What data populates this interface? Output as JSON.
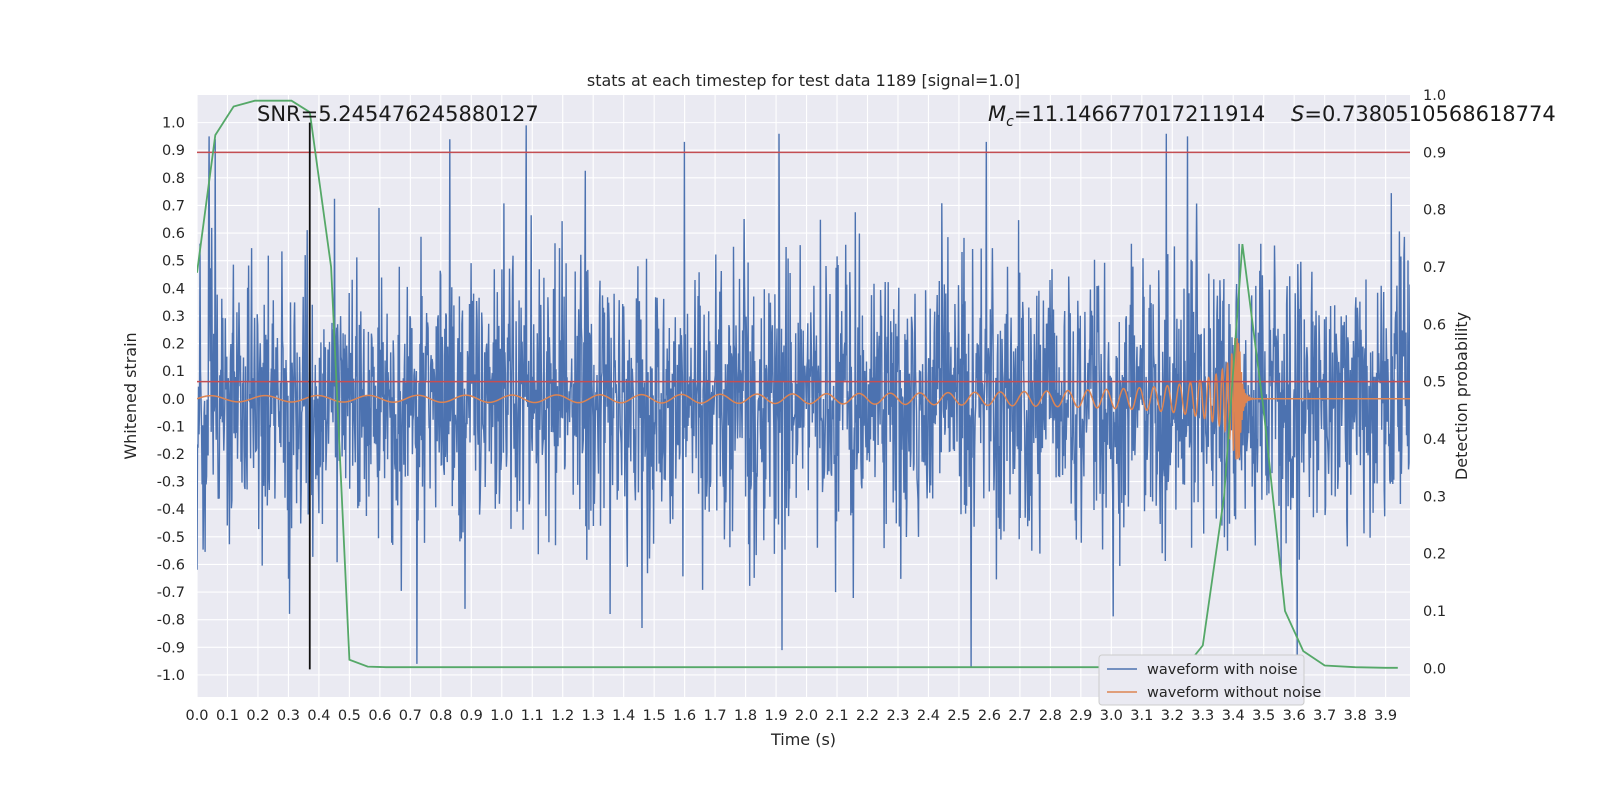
{
  "chart_data": {
    "type": "line",
    "title": "stats at each timestep for test data 1189 [signal=1.0]",
    "xlabel": "Time (s)",
    "ylabel": "Whitened strain",
    "y2label": "Detection probability",
    "xlim": [
      0.0,
      3.98
    ],
    "ylim": [
      -1.08,
      1.1
    ],
    "y2lim": [
      -0.05,
      1.0
    ],
    "x_ticks": [
      0.0,
      0.1,
      0.2,
      0.3,
      0.4,
      0.5,
      0.6,
      0.7,
      0.8,
      0.9,
      1.0,
      1.1,
      1.2,
      1.3,
      1.4,
      1.5,
      1.6,
      1.7,
      1.8,
      1.9,
      2.0,
      2.1,
      2.2,
      2.3,
      2.4,
      2.5,
      2.6,
      2.7,
      2.8,
      2.9,
      3.0,
      3.1,
      3.2,
      3.3,
      3.4,
      3.5,
      3.6,
      3.7,
      3.8,
      3.9
    ],
    "y_ticks": [
      -1.0,
      -0.9,
      -0.8,
      -0.7,
      -0.6,
      -0.5,
      -0.4,
      -0.3,
      -0.2,
      -0.1,
      0.0,
      0.1,
      0.2,
      0.3,
      0.4,
      0.5,
      0.6,
      0.7,
      0.8,
      0.9,
      1.0
    ],
    "y2_ticks": [
      0.0,
      0.1,
      0.2,
      0.3,
      0.4,
      0.5,
      0.6,
      0.7,
      0.8,
      0.9,
      1.0
    ],
    "grid": true,
    "legend_position": "lower-right",
    "series": [
      {
        "name": "waveform with noise",
        "color": "#4c72b0",
        "axis": "left",
        "description_values": "dense noise between about -0.9 and 1.0",
        "noise_amplitude": 0.35,
        "peaks": [
          {
            "x": 0.04,
            "y": 0.95
          },
          {
            "x": 0.06,
            "y": 0.94
          },
          {
            "x": 0.83,
            "y": 0.94
          },
          {
            "x": 1.08,
            "y": 0.99
          },
          {
            "x": 1.6,
            "y": 0.93
          },
          {
            "x": 1.91,
            "y": 0.96
          },
          {
            "x": 2.59,
            "y": 0.93
          },
          {
            "x": 3.25,
            "y": 0.95
          },
          {
            "x": 1.92,
            "y": -0.91
          },
          {
            "x": 2.54,
            "y": -0.97
          },
          {
            "x": 3.61,
            "y": -0.97
          },
          {
            "x": 1.46,
            "y": -0.83
          }
        ]
      },
      {
        "name": "waveform without noise",
        "color": "#dd8452",
        "axis": "left",
        "chirp_start": 0.0,
        "chirp_merger": 3.42,
        "chirp_end_amplitude": 0.22
      },
      {
        "name": "",
        "color": "#55a868",
        "axis": "right",
        "x": [
          0.0,
          0.06,
          0.12,
          0.19,
          0.25,
          0.31,
          0.37,
          0.44,
          0.5,
          0.56,
          0.62,
          0.75,
          1.0,
          1.5,
          2.0,
          2.5,
          3.0,
          3.2,
          3.27,
          3.3,
          3.37,
          3.43,
          3.5,
          3.57,
          3.63,
          3.7,
          3.8,
          3.9,
          3.94
        ],
        "y": [
          0.69,
          0.93,
          0.98,
          0.99,
          0.99,
          0.99,
          0.97,
          0.7,
          0.015,
          0.003,
          0.002,
          0.002,
          0.002,
          0.002,
          0.002,
          0.002,
          0.002,
          0.002,
          0.02,
          0.04,
          0.3,
          0.74,
          0.45,
          0.1,
          0.03,
          0.005,
          0.002,
          0.001,
          0.001
        ]
      }
    ],
    "threshold_line": {
      "y2": 0.9,
      "color": "#c44e52"
    },
    "baseline_line": {
      "y2": 0.5,
      "color": "#c44e52"
    },
    "marker_line": {
      "x": 0.37,
      "color": "#111111"
    },
    "annotations": {
      "snr": "SNR=5.245476245880127",
      "mc_symbol": "M",
      "mc_sub": "c",
      "mc_value": "=11.146677017211914",
      "s_symbol": "S",
      "s_value": "=0.7380510568618774"
    }
  }
}
